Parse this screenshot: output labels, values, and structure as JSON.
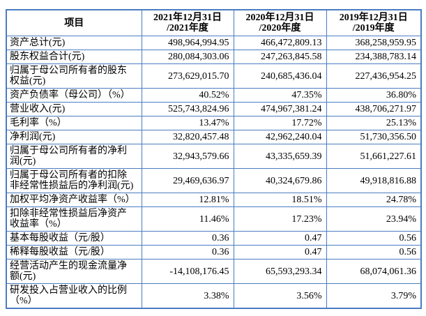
{
  "colors": {
    "border": "#4a7cc0",
    "text": "#000000",
    "background": "#ffffff"
  },
  "table": {
    "header": [
      {
        "label": "项目"
      },
      {
        "label": "2021年12月31日\n/2021年度"
      },
      {
        "label": "2020年12月31日\n/2020年度"
      },
      {
        "label": "2019年12月31日\n/2019年度"
      }
    ],
    "rows": [
      {
        "label": "资产总计(元)",
        "values": [
          "498,964,994.95",
          "466,472,809.13",
          "368,258,959.95"
        ]
      },
      {
        "label": "股东权益合计(元)",
        "values": [
          "280,084,303.06",
          "247,263,845.58",
          "234,388,783.14"
        ]
      },
      {
        "label": "归属于母公司所有者的股东\n权益(元)",
        "values": [
          "273,629,015.70",
          "240,685,436.04",
          "227,436,954.25"
        ]
      },
      {
        "label": "资产负债率（母公司）（%）",
        "values": [
          "40.52%",
          "47.35%",
          "36.80%"
        ]
      },
      {
        "label": "营业收入(元)",
        "values": [
          "525,743,824.96",
          "474,967,381.24",
          "438,706,271.97"
        ]
      },
      {
        "label": "毛利率（%）",
        "values": [
          "13.47%",
          "17.72%",
          "25.13%"
        ]
      },
      {
        "label": "净利润(元)",
        "values": [
          "32,820,457.48",
          "42,962,240.04",
          "51,730,356.50"
        ]
      },
      {
        "label": "归属于母公司所有者的净利\n润(元)",
        "values": [
          "32,943,579.66",
          "43,335,659.39",
          "51,661,227.61"
        ]
      },
      {
        "label": "归属于母公司所有者的扣除\n非经常性损益后的净利润(元)",
        "values": [
          "29,469,636.97",
          "40,324,679.86",
          "49,918,816.88"
        ]
      },
      {
        "label": "加权平均净资产收益率（%）",
        "values": [
          "12.81%",
          "18.51%",
          "24.78%"
        ]
      },
      {
        "label": "扣除非经常性损益后净资产\n收益率（%）",
        "values": [
          "11.46%",
          "17.23%",
          "23.94%"
        ]
      },
      {
        "label": "基本每股收益（元/股）",
        "values": [
          "0.36",
          "0.47",
          "0.56"
        ]
      },
      {
        "label": "稀释每股收益（元/股）",
        "values": [
          "0.36",
          "0.47",
          "0.56"
        ]
      },
      {
        "label": "经营活动产生的现金流量净\n额(元)",
        "values": [
          "-14,108,176.45",
          "65,593,293.34",
          "68,074,061.36"
        ]
      },
      {
        "label": "研发投入占营业收入的比例\n（%）",
        "values": [
          "3.38%",
          "3.56%",
          "3.79%"
        ]
      }
    ]
  }
}
